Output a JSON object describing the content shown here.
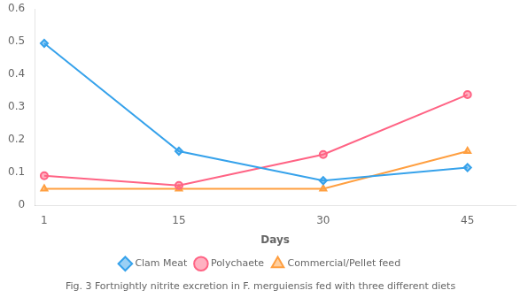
{
  "chart_data": {
    "type": "line",
    "x": [
      1,
      15,
      30,
      45
    ],
    "series": [
      {
        "name": "Clam Meat",
        "values": [
          0.495,
          0.165,
          0.075,
          0.115
        ],
        "marker": "diamond"
      },
      {
        "name": "Polychaete",
        "values": [
          0.09,
          0.06,
          0.155,
          0.338
        ],
        "marker": "circle"
      },
      {
        "name": "Commercial/Pellet feed",
        "values": [
          0.05,
          0.05,
          0.05,
          0.165
        ],
        "marker": "triangle"
      }
    ],
    "xlabel": "Days",
    "caption": "Fig. 3 Fortnightly nitrite excretion in F. merguiensis fed with three different diets",
    "xlim": [
      0,
      50
    ],
    "xticks": [
      1,
      15,
      30,
      45
    ],
    "ylim": [
      0,
      0.6
    ],
    "yticks": [
      0,
      0.1,
      0.2,
      0.3,
      0.4,
      0.5,
      0.6
    ],
    "grid": false,
    "legend": "bottom"
  }
}
